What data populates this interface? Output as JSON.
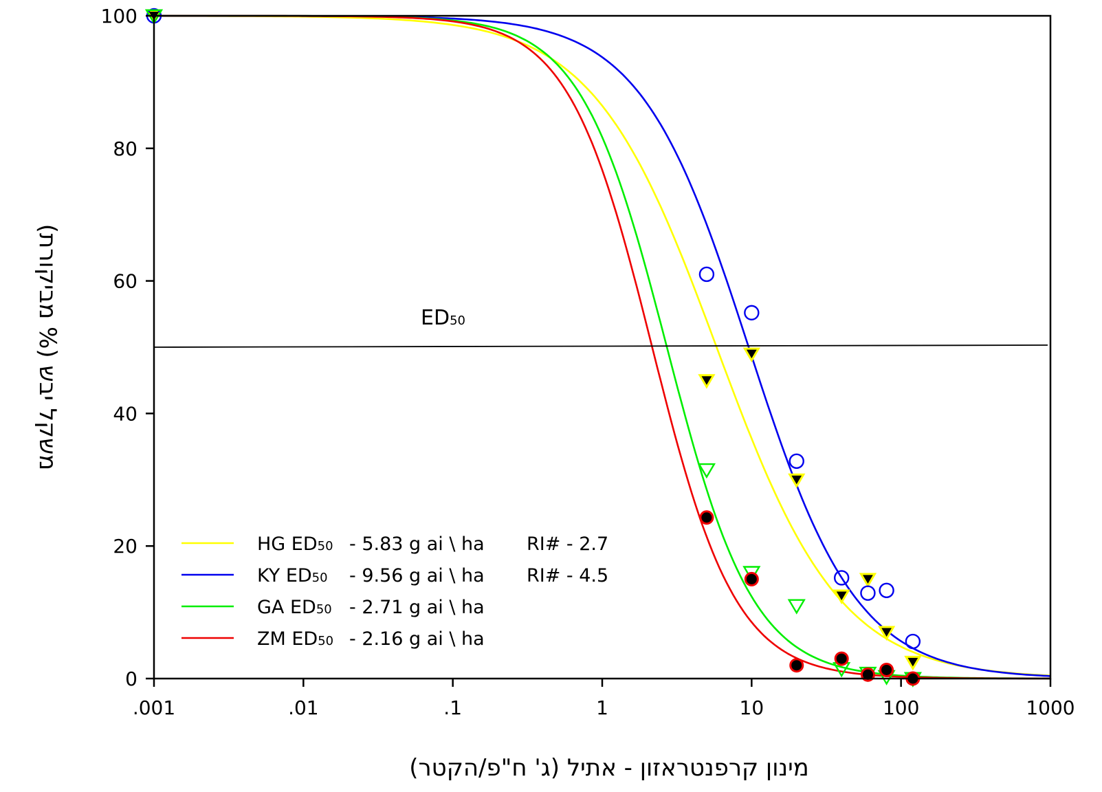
{
  "chart_data": {
    "type": "line",
    "xscale": "log",
    "xlim": [
      0.001,
      1000
    ],
    "ylim": [
      0,
      100
    ],
    "xticks": [
      ".001",
      ".01",
      ".1",
      "1",
      "10",
      "100",
      "1000"
    ],
    "xtick_values": [
      0.001,
      0.01,
      0.1,
      1,
      10,
      100,
      1000
    ],
    "yticks": [
      0,
      20,
      40,
      60,
      80,
      100
    ],
    "xlabel": "מינון קרפנטראזון - אתיל (ג' ח\"פ/הקטר)",
    "ylabel": "משקל יבש (% מביקורת)",
    "reference_line": {
      "y": 50,
      "label_main": "ED",
      "label_sub": "50"
    },
    "legend_position": "bottom-left",
    "series": [
      {
        "name": "HG",
        "legend_label": "HG ED",
        "legend_sub": "50",
        "legend_tail": "- 5.83 g ai \\ ha",
        "legend_ri": "RI# - 2.7",
        "color": "#ffff00",
        "marker": "filled-triangle-down",
        "ed50": 5.83,
        "slope": 1.05,
        "points": [
          [
            0.001,
            100
          ],
          [
            5,
            45
          ],
          [
            10,
            49
          ],
          [
            20,
            30
          ],
          [
            40,
            12.5
          ],
          [
            60,
            15
          ],
          [
            80,
            7
          ],
          [
            120,
            2.5
          ]
        ]
      },
      {
        "name": "KY",
        "legend_label": "KY  ED",
        "legend_sub": "50",
        "legend_tail": "- 9.56 g ai \\ ha",
        "legend_ri": "RI# - 4.5",
        "color": "#0000ee",
        "marker": "open-circle",
        "ed50": 9.56,
        "slope": 1.2,
        "points": [
          [
            0.001,
            100
          ],
          [
            5,
            61
          ],
          [
            10,
            55.2
          ],
          [
            20,
            32.8
          ],
          [
            40,
            15.2
          ],
          [
            60,
            12.9
          ],
          [
            80,
            13.3
          ],
          [
            120,
            5.6
          ]
        ]
      },
      {
        "name": "GA",
        "legend_label": "GA ED",
        "legend_sub": "50",
        "legend_tail": "- 2.71 g ai \\ ha",
        "legend_ri": "",
        "color": "#00ee00",
        "marker": "open-triangle-down",
        "ed50": 2.71,
        "slope": 1.5,
        "points": [
          [
            0.001,
            100
          ],
          [
            5,
            31.5
          ],
          [
            10,
            16
          ],
          [
            20,
            11
          ],
          [
            40,
            1.5
          ],
          [
            60,
            0.8
          ],
          [
            80,
            0.3
          ],
          [
            120,
            0
          ]
        ]
      },
      {
        "name": "ZM",
        "legend_label": "ZM ED",
        "legend_sub": "50",
        "legend_tail": "- 2.16 g ai \\ ha",
        "legend_ri": "",
        "color": "#ee0000",
        "marker": "filled-circle",
        "ed50": 2.16,
        "slope": 1.55,
        "points": [
          [
            5,
            24.3
          ],
          [
            10,
            15
          ],
          [
            20,
            2
          ],
          [
            40,
            3
          ],
          [
            60,
            0.6
          ],
          [
            80,
            1.3
          ],
          [
            120,
            0
          ]
        ]
      }
    ]
  }
}
